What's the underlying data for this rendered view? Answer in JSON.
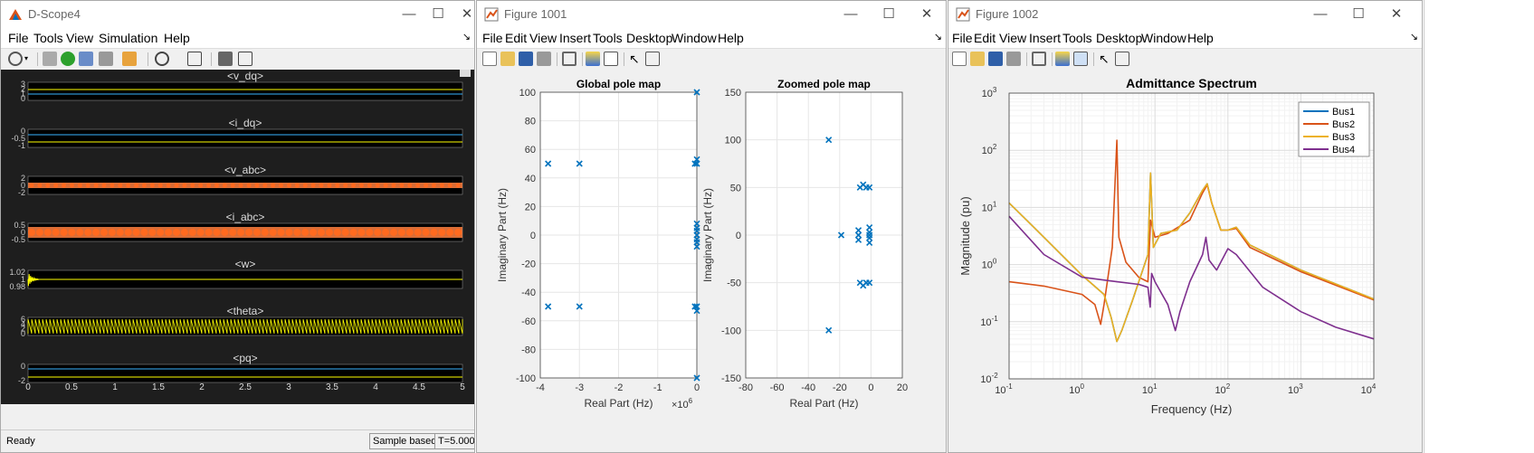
{
  "dscope": {
    "title": "D-Scope4",
    "menu": [
      "File",
      "Tools",
      "View",
      "Simulation",
      "Help"
    ],
    "status": {
      "left": "Ready",
      "mode": "Sample based",
      "time": "T=5.000"
    },
    "panels": [
      {
        "title": "<v_dq>",
        "ticks": [
          "3",
          "2",
          "1",
          "0"
        ]
      },
      {
        "title": "<i_dq>",
        "ticks": [
          "0",
          "-0.5",
          "-1"
        ]
      },
      {
        "title": "<v_abc>",
        "ticks": [
          "2",
          "0",
          "-2"
        ]
      },
      {
        "title": "<i_abc>",
        "ticks": [
          "0.5",
          "0",
          "-0.5"
        ]
      },
      {
        "title": "<w>",
        "ticks": [
          "1.02",
          "1",
          "0.98"
        ]
      },
      {
        "title": "<theta>",
        "ticks": [
          "6",
          "4",
          "2",
          "0"
        ]
      },
      {
        "title": "<pq>",
        "ticks": [
          "0",
          "-2"
        ]
      }
    ],
    "xticks": [
      "0",
      "0.5",
      "1",
      "1.5",
      "2",
      "2.5",
      "3",
      "3.5",
      "4",
      "4.5",
      "5"
    ],
    "colors": {
      "yellow": "#ffff00",
      "cyan": "#37b4ff",
      "orange": "#ff8040",
      "bg": "#000000",
      "frame": "#333333"
    }
  },
  "fig1001": {
    "title": "Figure 1001",
    "menu": [
      "File",
      "Edit",
      "View",
      "Insert",
      "Tools",
      "Desktop",
      "Window",
      "Help"
    ]
  },
  "fig1002": {
    "title": "Figure 1002",
    "menu": [
      "File",
      "Edit",
      "View",
      "Insert",
      "Tools",
      "Desktop",
      "Window",
      "Help"
    ]
  },
  "chart_data": [
    {
      "type": "scatter",
      "title": "Global pole map",
      "xlabel": "Real Part (Hz)",
      "ylabel": "Imaginary Part (Hz)",
      "x_multiplier_label": "×10",
      "x_multiplier_exp": "6",
      "xlim": [
        -4,
        0
      ],
      "ylim": [
        -100,
        100
      ],
      "xticks": [
        "-4",
        "-3",
        "-2",
        "-1",
        "0"
      ],
      "yticks": [
        "100",
        "80",
        "60",
        "40",
        "20",
        "0",
        "-20",
        "-40",
        "-60",
        "-80",
        "-100"
      ],
      "points": [
        [
          -3.8,
          50
        ],
        [
          -3.0,
          50
        ],
        [
          -3.8,
          -50
        ],
        [
          -3.0,
          -50
        ],
        [
          -0.05,
          50
        ],
        [
          -0.05,
          -50
        ],
        [
          0,
          100
        ],
        [
          0,
          -100
        ],
        [
          0,
          53
        ],
        [
          0,
          50
        ],
        [
          0,
          -53
        ],
        [
          0,
          -50
        ],
        [
          0,
          8
        ],
        [
          0,
          5
        ],
        [
          0,
          3
        ],
        [
          0,
          0
        ],
        [
          0,
          -3
        ],
        [
          0,
          -5
        ],
        [
          0,
          -8
        ]
      ],
      "marker_color": "#0072bd"
    },
    {
      "type": "scatter",
      "title": "Zoomed pole map",
      "xlabel": "Real Part (Hz)",
      "ylabel": "Imaginary Part (Hz)",
      "xlim": [
        -80,
        20
      ],
      "ylim": [
        -150,
        150
      ],
      "xticks": [
        "-80",
        "-60",
        "-40",
        "-20",
        "0",
        "20"
      ],
      "yticks": [
        "150",
        "100",
        "50",
        "0",
        "-50",
        "-100",
        "-150"
      ],
      "points": [
        [
          -27,
          100
        ],
        [
          -27,
          -100
        ],
        [
          -19,
          0
        ],
        [
          -7,
          50
        ],
        [
          -5,
          53
        ],
        [
          -3,
          50
        ],
        [
          -1,
          50
        ],
        [
          -7,
          -50
        ],
        [
          -5,
          -53
        ],
        [
          -3,
          -50
        ],
        [
          -1,
          -50
        ],
        [
          -8,
          5
        ],
        [
          -8,
          0
        ],
        [
          -8,
          -5
        ],
        [
          -1,
          8
        ],
        [
          -1,
          3
        ],
        [
          -1,
          0
        ],
        [
          -1,
          -3
        ],
        [
          -1,
          -8
        ]
      ],
      "marker_color": "#0072bd"
    },
    {
      "type": "line",
      "title": "Admittance Spectrum",
      "xlabel": "Frequency (Hz)",
      "ylabel": "Magnitude (pu)",
      "xscale": "log",
      "yscale": "log",
      "xlim": [
        0.1,
        10000
      ],
      "ylim": [
        0.01,
        1000
      ],
      "xticks": [
        "10",
        "10",
        "10",
        "10",
        "10",
        "10"
      ],
      "xtick_exps": [
        "-1",
        "0",
        "1",
        "2",
        "3",
        "4"
      ],
      "yticks": [
        "10",
        "10",
        "10",
        "10",
        "10",
        "10"
      ],
      "ytick_exps": [
        "3",
        "2",
        "1",
        "0",
        "-1",
        "-2"
      ],
      "legend_position": "top-right",
      "series": [
        {
          "name": "Bus1",
          "color": "#0072bd",
          "points": [
            [
              0.1,
              12
            ],
            [
              0.3,
              3
            ],
            [
              1,
              0.65
            ],
            [
              2,
              0.3
            ],
            [
              2.5,
              0.12
            ],
            [
              3,
              0.045
            ],
            [
              3.5,
              0.07
            ],
            [
              5,
              0.25
            ],
            [
              8,
              1.5
            ],
            [
              8.7,
              40
            ],
            [
              9.5,
              2
            ],
            [
              12,
              3.5
            ],
            [
              20,
              4
            ],
            [
              30,
              8
            ],
            [
              45,
              20
            ],
            [
              52,
              26
            ],
            [
              60,
              12
            ],
            [
              80,
              4
            ],
            [
              100,
              4
            ],
            [
              130,
              4.5
            ],
            [
              200,
              2.2
            ],
            [
              1000,
              0.8
            ],
            [
              10000,
              0.25
            ]
          ]
        },
        {
          "name": "Bus2",
          "color": "#d95319",
          "points": [
            [
              0.1,
              0.5
            ],
            [
              0.3,
              0.42
            ],
            [
              1,
              0.3
            ],
            [
              1.5,
              0.2
            ],
            [
              1.8,
              0.09
            ],
            [
              2,
              0.2
            ],
            [
              2.6,
              2
            ],
            [
              3,
              150
            ],
            [
              3.2,
              3
            ],
            [
              4,
              1.1
            ],
            [
              6,
              0.6
            ],
            [
              8,
              0.5
            ],
            [
              8.7,
              6
            ],
            [
              10,
              3
            ],
            [
              15,
              3.5
            ],
            [
              30,
              6
            ],
            [
              45,
              18
            ],
            [
              52,
              25
            ],
            [
              60,
              12
            ],
            [
              80,
              4
            ],
            [
              100,
              4
            ],
            [
              130,
              4.3
            ],
            [
              200,
              2
            ],
            [
              1000,
              0.75
            ],
            [
              10000,
              0.24
            ]
          ]
        },
        {
          "name": "Bus3",
          "color": "#edb120",
          "points": [
            [
              0.1,
              12
            ],
            [
              0.3,
              3
            ],
            [
              1,
              0.65
            ],
            [
              2,
              0.3
            ],
            [
              2.5,
              0.12
            ],
            [
              3,
              0.045
            ],
            [
              3.5,
              0.07
            ],
            [
              5,
              0.25
            ],
            [
              8,
              1.5
            ],
            [
              8.7,
              40
            ],
            [
              9.5,
              2
            ],
            [
              12,
              3.5
            ],
            [
              20,
              4
            ],
            [
              30,
              8
            ],
            [
              45,
              20
            ],
            [
              52,
              26
            ],
            [
              60,
              12
            ],
            [
              80,
              4
            ],
            [
              100,
              4
            ],
            [
              130,
              4.5
            ],
            [
              200,
              2.2
            ],
            [
              1000,
              0.8
            ],
            [
              10000,
              0.25
            ]
          ]
        },
        {
          "name": "Bus4",
          "color": "#7e2f8e",
          "points": [
            [
              0.1,
              7
            ],
            [
              0.3,
              1.5
            ],
            [
              1,
              0.6
            ],
            [
              3,
              0.5
            ],
            [
              6,
              0.45
            ],
            [
              8,
              0.4
            ],
            [
              8.6,
              0.18
            ],
            [
              9,
              0.7
            ],
            [
              10,
              0.5
            ],
            [
              15,
              0.2
            ],
            [
              19,
              0.07
            ],
            [
              22,
              0.15
            ],
            [
              30,
              0.5
            ],
            [
              45,
              1.5
            ],
            [
              50,
              3
            ],
            [
              55,
              1.2
            ],
            [
              70,
              0.8
            ],
            [
              100,
              1.9
            ],
            [
              130,
              1.5
            ],
            [
              300,
              0.4
            ],
            [
              1000,
              0.15
            ],
            [
              3000,
              0.08
            ],
            [
              10000,
              0.05
            ]
          ]
        }
      ]
    }
  ]
}
